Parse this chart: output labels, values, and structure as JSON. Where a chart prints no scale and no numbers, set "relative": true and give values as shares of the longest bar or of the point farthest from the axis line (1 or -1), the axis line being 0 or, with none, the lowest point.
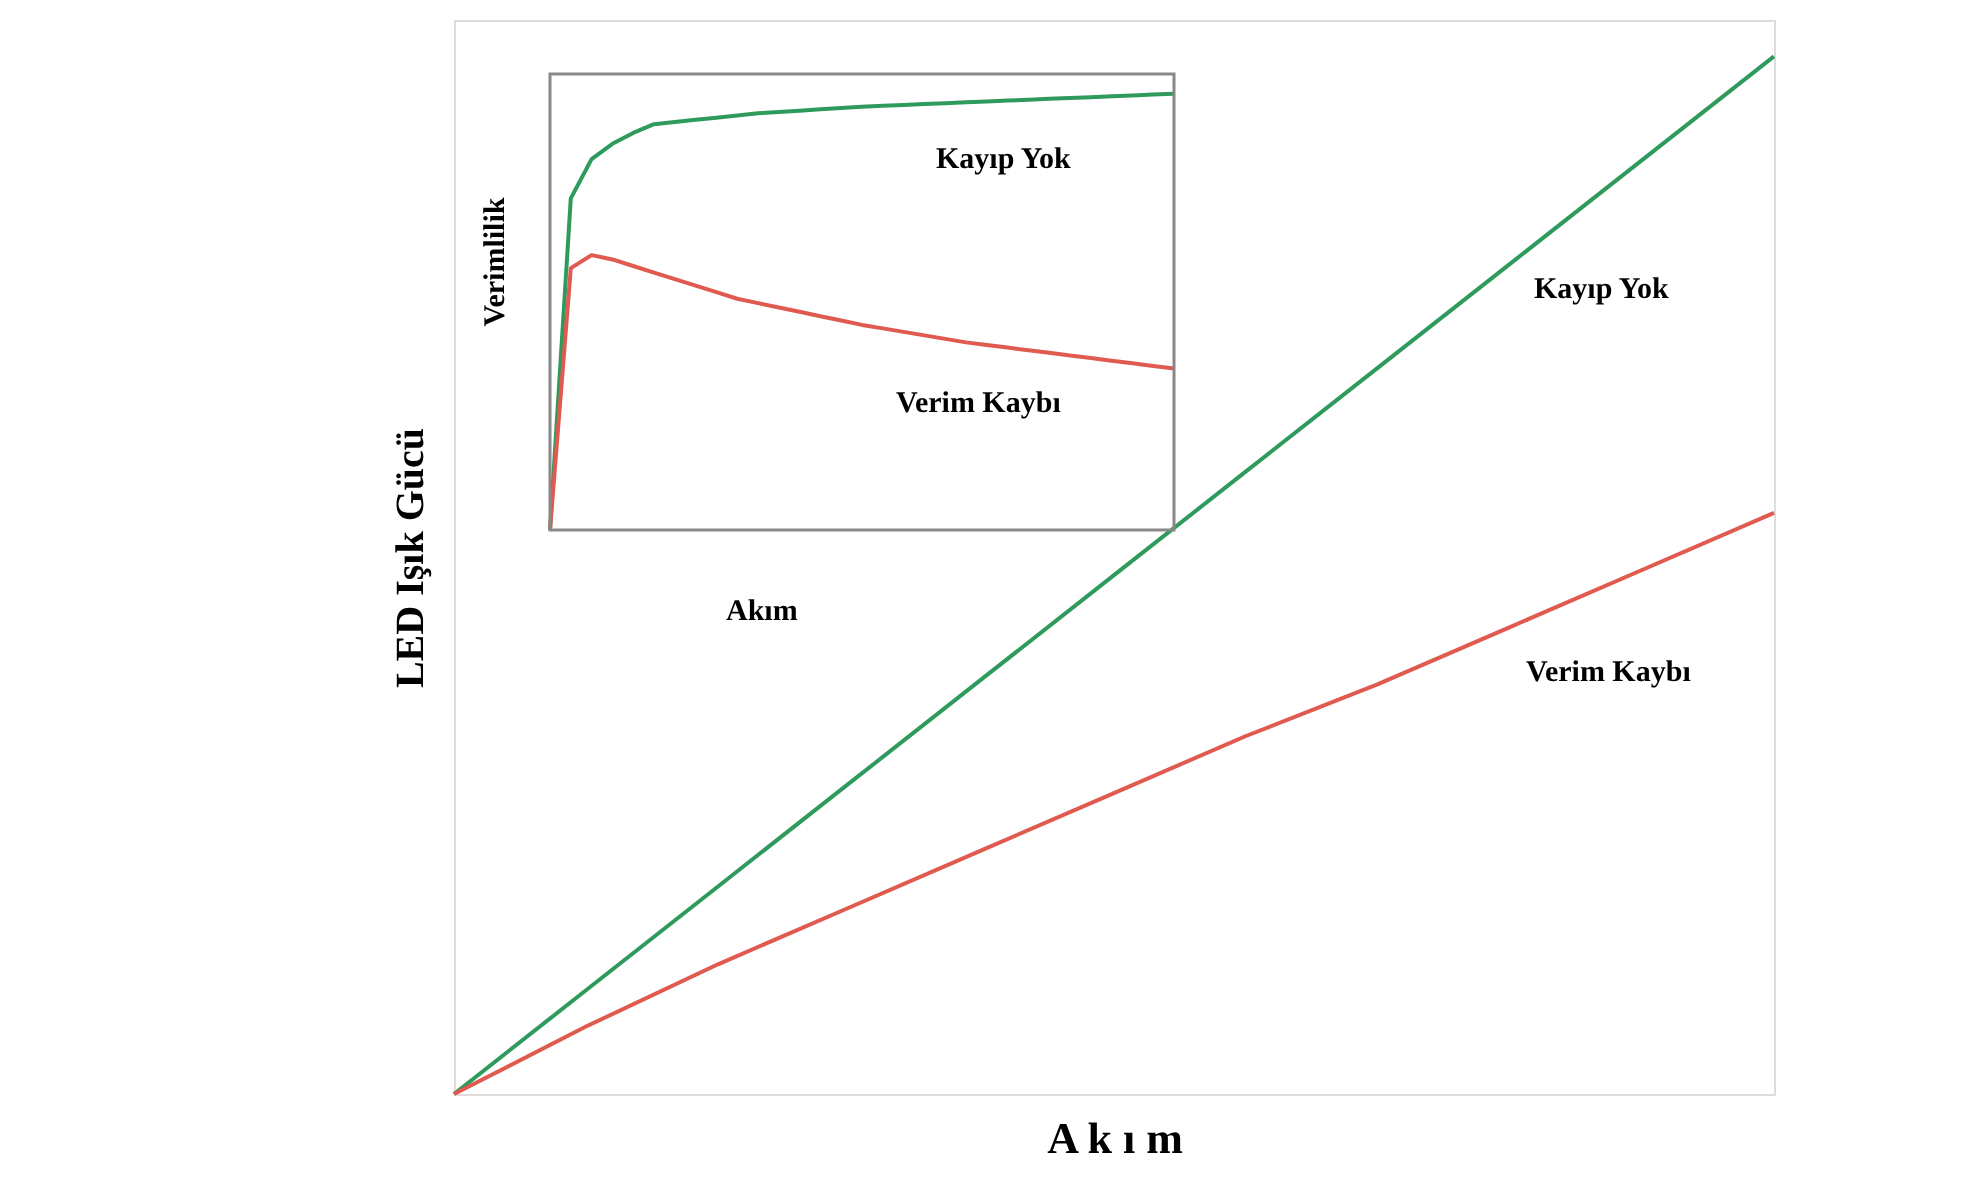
{
  "chart_data": [
    {
      "type": "line",
      "relative": true,
      "xlabel": "A k ı m",
      "ylabel": "LED Işık Gücü",
      "categories": [
        null,
        null,
        null,
        null,
        null,
        null,
        null,
        null,
        null,
        null,
        null
      ],
      "series": [
        {
          "name": "Kayıp Yok",
          "color": "#2e9a5c",
          "values": [
            0,
            0.1,
            0.2,
            0.3,
            0.4,
            0.5,
            0.6,
            0.7,
            0.8,
            0.9,
            1.0
          ]
        },
        {
          "name": "Verim Kaybı",
          "color": "#e05a50",
          "values": [
            0,
            0.065,
            0.125,
            0.18,
            0.235,
            0.29,
            0.345,
            0.395,
            0.45,
            0.505,
            0.56
          ]
        }
      ]
    },
    {
      "type": "line",
      "relative": true,
      "xlabel": "Akım",
      "ylabel": "Verimlilik",
      "categories": [
        null,
        null,
        null,
        null,
        null,
        null,
        null,
        null,
        null,
        null,
        null,
        null,
        null,
        null,
        null,
        null,
        null,
        null,
        null,
        null,
        null,
        null,
        null,
        null,
        null,
        null,
        null,
        null,
        null,
        null,
        null
      ],
      "series": [
        {
          "name": "Kayıp Yok",
          "color": "#2e9a5c",
          "values": [
            0,
            0.76,
            0.85,
            0.885,
            0.91,
            0.93,
            0.935,
            0.94,
            0.945,
            0.95,
            0.955,
            0.958,
            0.961,
            0.964,
            0.967,
            0.97,
            0.972,
            0.974,
            0.976,
            0.978,
            0.98,
            0.982,
            0.984,
            0.986,
            0.988,
            0.99,
            0.992,
            0.994,
            0.996,
            0.998,
            1.0
          ]
        },
        {
          "name": "Verim Kaybı",
          "color": "#e05a50",
          "values": [
            0,
            0.6,
            0.63,
            0.62,
            0.605,
            0.59,
            0.575,
            0.56,
            0.545,
            0.53,
            0.52,
            0.51,
            0.5,
            0.49,
            0.48,
            0.47,
            0.462,
            0.454,
            0.446,
            0.438,
            0.43,
            0.424,
            0.418,
            0.412,
            0.406,
            0.4,
            0.394,
            0.388,
            0.382,
            0.376,
            0.37
          ]
        }
      ]
    }
  ]
}
